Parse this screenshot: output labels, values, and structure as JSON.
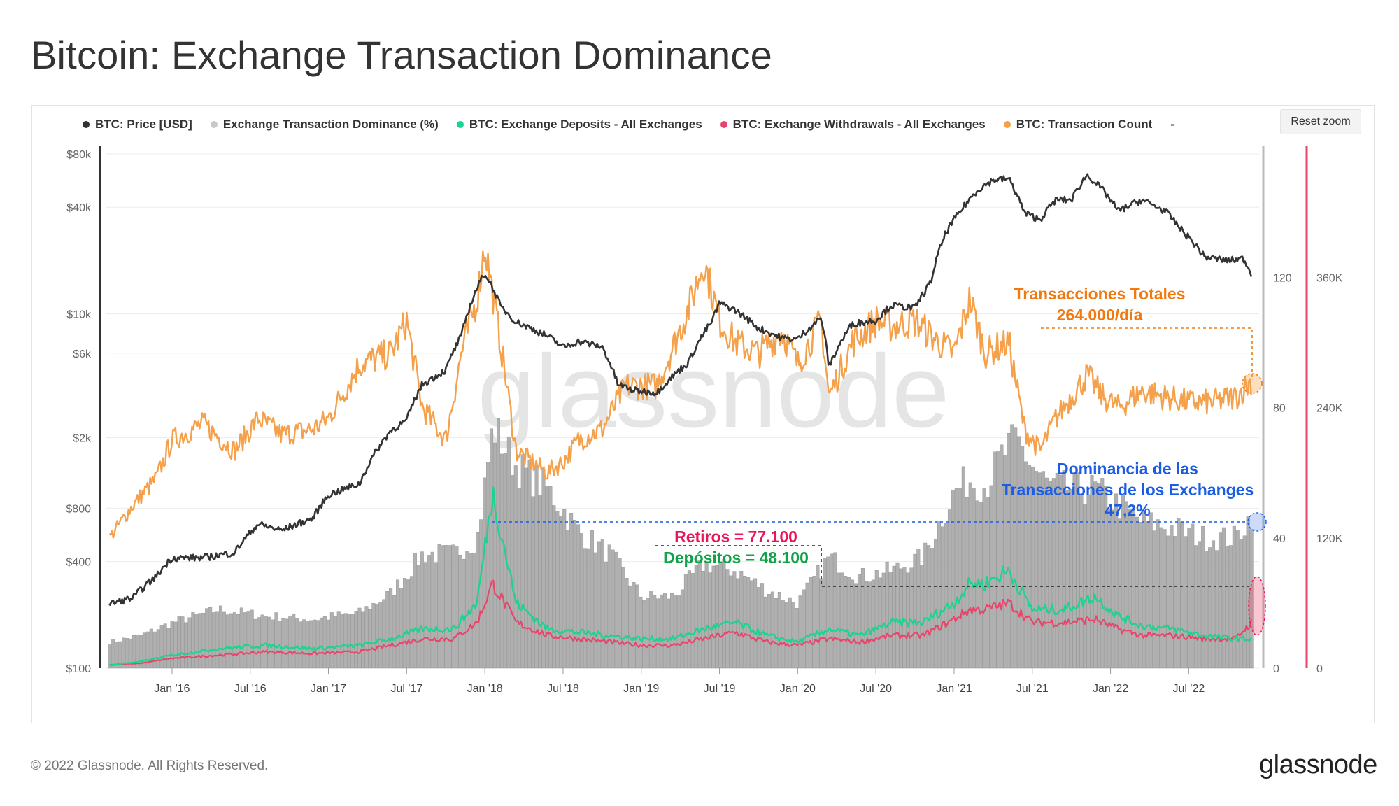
{
  "page": {
    "title": "Bitcoin: Exchange Transaction Dominance",
    "reset_zoom": "Reset zoom",
    "copyright": "© 2022 Glassnode. All Rights Reserved.",
    "logo_text": "glassnode",
    "watermark": "glassnode"
  },
  "legend": [
    {
      "label": "BTC: Price [USD]",
      "color": "#333333"
    },
    {
      "label": "Exchange Transaction Dominance (%)",
      "color": "#c8c8c8"
    },
    {
      "label": "BTC: Exchange Deposits - All Exchanges",
      "color": "#1ed38f"
    },
    {
      "label": "BTC: Exchange Withdrawals - All Exchanges",
      "color": "#e8456a"
    },
    {
      "label": "BTC: Transaction Count",
      "color": "#f5a04a"
    },
    {
      "label": "-",
      "color": "transparent"
    }
  ],
  "annotations": {
    "tx_total_line1": "Transacciones Totales",
    "tx_total_line2": "264.000/día",
    "dominance_line1": "Dominancia de las",
    "dominance_line2": "Transacciones de los Exchanges",
    "dominance_line3": "47,2%",
    "withdrawals": "Retiros = 77.100",
    "deposits": "Depósitos = 48.100",
    "tx_color": "#f07a10",
    "dominance_color": "#1a5ce6",
    "withdrawals_color": "#e8175a",
    "deposits_color": "#12a24a"
  },
  "chart_data": {
    "type": "line",
    "x_ticks": [
      "Jan '16",
      "Jul '16",
      "Jan '17",
      "Jul '17",
      "Jan '18",
      "Jul '18",
      "Jan '19",
      "Jul '19",
      "Jan '20",
      "Jul '20",
      "Jan '21",
      "Jul '21",
      "Jan '22",
      "Jul '22"
    ],
    "y_left_ticks": [
      "$80k",
      "$40k",
      "$10k",
      "$6k",
      "$2k",
      "$800",
      "$400",
      "$100"
    ],
    "y_left_values": [
      80000,
      40000,
      10000,
      6000,
      2000,
      800,
      400,
      100
    ],
    "y_left_scale": "log",
    "y_left_range": [
      100,
      80000
    ],
    "y_mid_ticks": [
      "120",
      "80",
      "40",
      "0"
    ],
    "y_mid_range": [
      0,
      160
    ],
    "y_right_ticks": [
      "360K",
      "240K",
      "120K",
      "0"
    ],
    "y_right_range": [
      0,
      480000
    ],
    "x_range": [
      "2015-08",
      "2022-12"
    ],
    "series": [
      {
        "name": "BTC: Price [USD]",
        "axis": "left",
        "t": [
          2015.6,
          2015.75,
          2015.9,
          2016.0,
          2016.2,
          2016.4,
          2016.55,
          2016.7,
          2016.9,
          2017.0,
          2017.2,
          2017.4,
          2017.5,
          2017.6,
          2017.75,
          2017.85,
          2017.95,
          2018.0,
          2018.1,
          2018.2,
          2018.4,
          2018.5,
          2018.6,
          2018.75,
          2018.85,
          2018.95,
          2019.1,
          2019.3,
          2019.45,
          2019.5,
          2019.6,
          2019.75,
          2019.9,
          2020.0,
          2020.15,
          2020.2,
          2020.35,
          2020.5,
          2020.6,
          2020.75,
          2020.85,
          2020.95,
          2021.05,
          2021.15,
          2021.25,
          2021.35,
          2021.45,
          2021.55,
          2021.65,
          2021.75,
          2021.85,
          2021.95,
          2022.05,
          2022.2,
          2022.35,
          2022.45,
          2022.6,
          2022.75,
          2022.85,
          2022.9
        ],
        "values": [
          230,
          250,
          330,
          420,
          420,
          450,
          650,
          600,
          700,
          950,
          1100,
          2200,
          2500,
          4000,
          4800,
          7500,
          14000,
          17000,
          11000,
          9000,
          7500,
          6500,
          7000,
          6500,
          4000,
          3700,
          3600,
          5300,
          9000,
          11500,
          10500,
          8300,
          7300,
          7200,
          9500,
          5000,
          8800,
          9200,
          11200,
          10800,
          15000,
          29000,
          39000,
          50000,
          57000,
          58000,
          37000,
          34000,
          44000,
          44000,
          61000,
          50000,
          38000,
          44000,
          38000,
          30000,
          21000,
          20000,
          20500,
          16800
        ],
        "color": "#333333"
      },
      {
        "name": "BTC: Transaction Count",
        "axis": "right",
        "t": [
          2015.6,
          2015.75,
          2015.9,
          2016.0,
          2016.2,
          2016.4,
          2016.55,
          2016.7,
          2016.9,
          2017.0,
          2017.2,
          2017.4,
          2017.5,
          2017.6,
          2017.75,
          2017.85,
          2017.95,
          2018.0,
          2018.1,
          2018.2,
          2018.4,
          2018.5,
          2018.6,
          2018.75,
          2018.9,
          2019.1,
          2019.3,
          2019.4,
          2019.5,
          2019.6,
          2019.75,
          2019.9,
          2020.0,
          2020.15,
          2020.2,
          2020.35,
          2020.5,
          2020.6,
          2020.75,
          2020.9,
          2021.0,
          2021.1,
          2021.2,
          2021.35,
          2021.45,
          2021.55,
          2021.65,
          2021.75,
          2021.85,
          2021.95,
          2022.05,
          2022.2,
          2022.35,
          2022.5,
          2022.65,
          2022.8,
          2022.9
        ],
        "values": [
          120000,
          150000,
          175000,
          210000,
          225000,
          200000,
          230000,
          215000,
          220000,
          230000,
          280000,
          290000,
          320000,
          240000,
          210000,
          290000,
          340000,
          390000,
          300000,
          200000,
          180000,
          190000,
          210000,
          220000,
          260000,
          260000,
          330000,
          375000,
          320000,
          300000,
          290000,
          310000,
          280000,
          320000,
          250000,
          300000,
          320000,
          315000,
          320000,
          300000,
          290000,
          340000,
          290000,
          300000,
          220000,
          200000,
          230000,
          250000,
          270000,
          250000,
          240000,
          255000,
          250000,
          245000,
          245000,
          250000,
          264000
        ],
        "color": "#f5a04a"
      },
      {
        "name": "Exchange Transaction Dominance (%)",
        "axis": "mid",
        "t": [
          2015.6,
          2015.8,
          2016.0,
          2016.3,
          2016.6,
          2016.9,
          2017.2,
          2017.4,
          2017.6,
          2017.8,
          2017.95,
          2018.05,
          2018.2,
          2018.4,
          2018.6,
          2018.8,
          2019.0,
          2019.2,
          2019.4,
          2019.6,
          2019.8,
          2020.0,
          2020.2,
          2020.4,
          2020.6,
          2020.8,
          2021.0,
          2021.1,
          2021.2,
          2021.3,
          2021.4,
          2021.5,
          2021.6,
          2021.75,
          2021.9,
          2022.05,
          2022.2,
          2022.4,
          2022.6,
          2022.8,
          2022.9
        ],
        "values": [
          8,
          10,
          14,
          18,
          16,
          15,
          17,
          23,
          35,
          35,
          40,
          74,
          62,
          55,
          42,
          35,
          22,
          22,
          32,
          30,
          24,
          20,
          34,
          28,
          30,
          34,
          54,
          58,
          56,
          65,
          70,
          62,
          56,
          55,
          55,
          50,
          45,
          43,
          40,
          40,
          47.2
        ],
        "color": "#b5b5b5"
      },
      {
        "name": "BTC: Exchange Deposits - All Exchanges",
        "axis": "mid",
        "t": [
          2015.6,
          2015.8,
          2016.0,
          2016.3,
          2016.6,
          2016.9,
          2017.2,
          2017.4,
          2017.6,
          2017.8,
          2017.95,
          2018.05,
          2018.2,
          2018.4,
          2018.6,
          2018.8,
          2019.0,
          2019.2,
          2019.4,
          2019.6,
          2019.8,
          2020.0,
          2020.2,
          2020.4,
          2020.6,
          2020.8,
          2021.0,
          2021.1,
          2021.2,
          2021.35,
          2021.5,
          2021.7,
          2021.9,
          2022.05,
          2022.2,
          2022.4,
          2022.6,
          2022.8,
          2022.9
        ],
        "values": [
          1,
          2,
          4,
          6,
          7,
          6,
          7,
          9,
          12,
          12,
          20,
          54,
          20,
          12,
          11,
          10,
          9,
          9,
          12,
          14,
          10,
          8,
          12,
          10,
          14,
          14,
          20,
          26,
          26,
          30,
          18,
          18,
          22,
          16,
          13,
          12,
          10,
          9,
          9
        ],
        "color": "#1ed38f"
      },
      {
        "name": "BTC: Exchange Withdrawals - All Exchanges",
        "axis": "mid",
        "t": [
          2015.6,
          2015.8,
          2016.0,
          2016.3,
          2016.6,
          2016.9,
          2017.2,
          2017.4,
          2017.6,
          2017.8,
          2017.95,
          2018.05,
          2018.2,
          2018.4,
          2018.6,
          2018.8,
          2019.0,
          2019.2,
          2019.4,
          2019.6,
          2019.8,
          2020.0,
          2020.2,
          2020.4,
          2020.6,
          2020.8,
          2021.0,
          2021.1,
          2021.2,
          2021.35,
          2021.5,
          2021.7,
          2021.9,
          2022.05,
          2022.2,
          2022.4,
          2022.6,
          2022.8,
          2022.9
        ],
        "values": [
          1,
          1.5,
          3,
          4,
          5,
          4.5,
          5,
          7,
          9,
          9,
          14,
          26,
          14,
          10,
          9,
          8,
          7,
          7,
          9,
          11,
          8,
          7,
          9,
          8,
          10,
          10,
          15,
          18,
          18,
          20,
          14,
          14,
          15,
          12,
          10,
          10,
          9,
          9,
          14
        ],
        "color": "#e8456a"
      }
    ]
  }
}
